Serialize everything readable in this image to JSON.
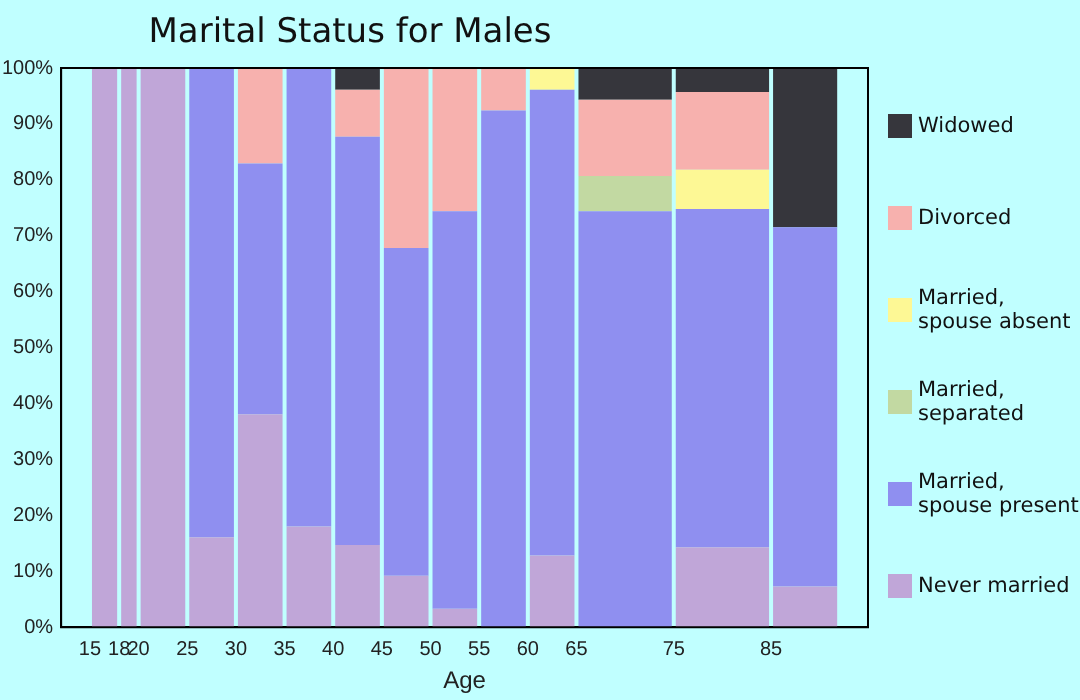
{
  "chart_data": {
    "type": "bar",
    "title": "Marital Status for Males",
    "xlabel": "Age",
    "stacked": true,
    "grid": false,
    "legend": "right",
    "x": [
      16.5,
      19,
      22.5,
      27.5,
      32.5,
      37.5,
      42.5,
      47.5,
      52.5,
      57.5,
      62.5,
      70,
      80,
      88.5
    ],
    "xlim": [
      15,
      92
    ],
    "xticks": [
      15,
      18,
      20,
      25,
      30,
      35,
      40,
      45,
      50,
      55,
      60,
      65,
      75,
      85
    ],
    "ylim": [
      0,
      100
    ],
    "yticks": [
      {
        "value": 0,
        "label": "0%"
      },
      {
        "value": 10,
        "label": "10%"
      },
      {
        "value": 20,
        "label": "20%"
      },
      {
        "value": 30,
        "label": "30%"
      },
      {
        "value": 40,
        "label": "40%"
      },
      {
        "value": 50,
        "label": "50%"
      },
      {
        "value": 60,
        "label": "60%"
      },
      {
        "value": 70,
        "label": "70%"
      },
      {
        "value": 80,
        "label": "80%"
      },
      {
        "value": 90,
        "label": "90%"
      },
      {
        "value": 100,
        "label": "100%"
      }
    ],
    "series": [
      {
        "name": "Never married",
        "color": "#c0a6d8",
        "values": [
          100,
          100,
          100,
          16.1,
          38.1,
          18.0,
          14.7,
          9.2,
          3.3,
          0,
          12.8,
          0,
          14.3,
          7.3
        ]
      },
      {
        "name": "Married, spouse present",
        "color": "#8f8ff0",
        "values": [
          0,
          0,
          0,
          83.9,
          44.8,
          82.0,
          73.0,
          58.6,
          71.1,
          92.4,
          83.3,
          74.4,
          60.5,
          64.2
        ]
      },
      {
        "name": "Married, separated",
        "color": "#c2d9a2",
        "values": [
          0,
          0,
          0,
          0,
          0,
          0,
          0,
          0,
          0,
          0,
          0,
          6.3,
          0,
          0
        ]
      },
      {
        "name": "Married, spouse absent",
        "color": "#fdf895",
        "values": [
          0,
          0,
          0,
          0,
          0,
          0,
          0,
          0,
          0,
          0,
          3.9,
          0,
          7.0,
          0
        ]
      },
      {
        "name": "Divorced",
        "color": "#f7b1ae",
        "values": [
          0,
          0,
          0,
          0,
          17.1,
          0,
          8.4,
          32.2,
          25.6,
          7.6,
          0,
          13.6,
          13.9,
          0
        ]
      },
      {
        "name": "Widowed",
        "color": "#36363c",
        "values": [
          0,
          0,
          0,
          0,
          0,
          0,
          3.9,
          0,
          0,
          0,
          0,
          5.7,
          4.3,
          28.5
        ]
      }
    ]
  }
}
